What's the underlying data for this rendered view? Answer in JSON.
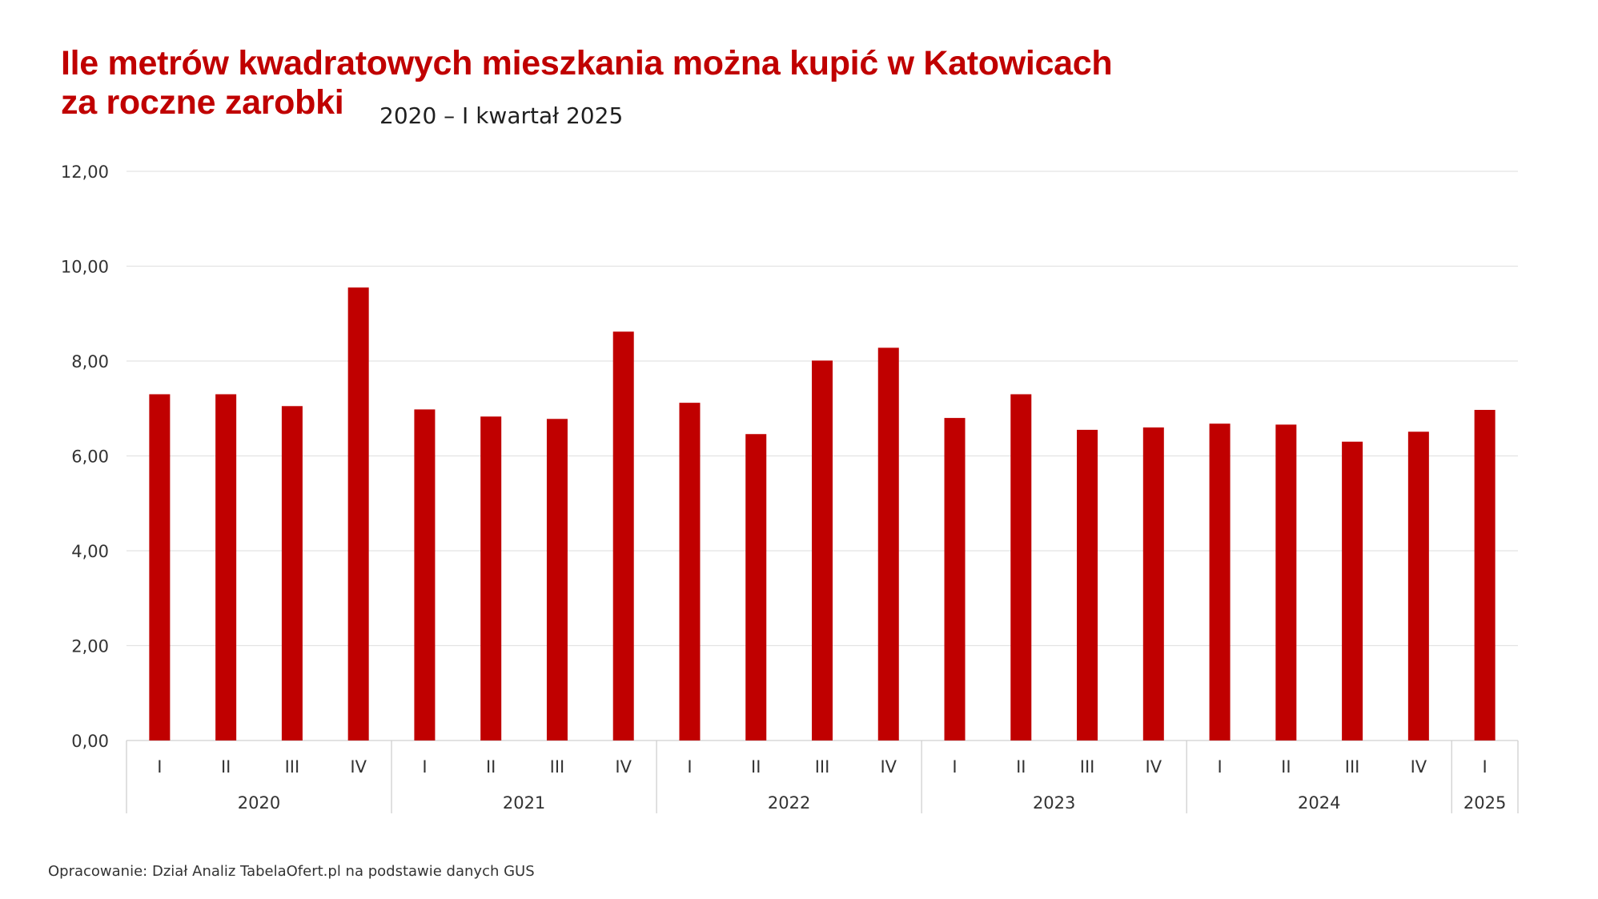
{
  "chart_data": {
    "type": "bar",
    "title": "Ile metrów kwadratowych mieszkania można kupić w Katowicach za roczne zarobki",
    "title_line1": "Ile metrów kwadratowych mieszkania można kupić w Katowicach",
    "title_line2": "za roczne zarobki",
    "subtitle": "2020 – I kwartał 2025",
    "xlabel": "",
    "ylabel": "",
    "ylim": [
      0,
      12
    ],
    "yticks": [
      "0,00",
      "2,00",
      "4,00",
      "6,00",
      "8,00",
      "10,00",
      "12,00"
    ],
    "ytick_values": [
      0,
      2,
      4,
      6,
      8,
      10,
      12
    ],
    "grid": true,
    "bar_color": "#c00000",
    "groups": [
      {
        "year": "2020",
        "quarters": [
          "I",
          "II",
          "III",
          "IV"
        ]
      },
      {
        "year": "2021",
        "quarters": [
          "I",
          "II",
          "III",
          "IV"
        ]
      },
      {
        "year": "2022",
        "quarters": [
          "I",
          "II",
          "III",
          "IV"
        ]
      },
      {
        "year": "2023",
        "quarters": [
          "I",
          "II",
          "III",
          "IV"
        ]
      },
      {
        "year": "2024",
        "quarters": [
          "I",
          "II",
          "III",
          "IV"
        ]
      },
      {
        "year": "2025",
        "quarters": [
          "I"
        ]
      }
    ],
    "values": [
      7.3,
      7.3,
      7.05,
      9.55,
      6.98,
      6.83,
      6.78,
      8.62,
      7.12,
      6.46,
      8.01,
      8.28,
      6.8,
      7.3,
      6.55,
      6.6,
      6.68,
      6.66,
      6.3,
      6.51,
      6.97
    ]
  },
  "footer": {
    "source": "Opracowanie: Dział Analiz TabelaOfert.pl na podstawie danych GUS"
  }
}
